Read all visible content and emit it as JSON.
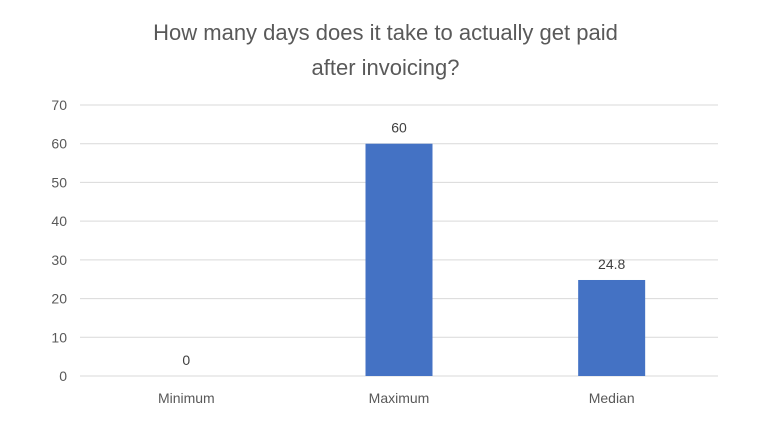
{
  "chart_data": {
    "type": "bar",
    "title": "How many days does it take to actually get paid after invoicing?",
    "title_lines": [
      "How many days does it take to actually get paid",
      "after invoicing?"
    ],
    "categories": [
      "Minimum",
      "Maximum",
      "Median"
    ],
    "values": [
      0,
      60,
      24.8
    ],
    "data_labels": [
      "0",
      "60",
      "24.8"
    ],
    "xlabel": "",
    "ylabel": "",
    "ylim": [
      0,
      70
    ],
    "yticks": [
      0,
      10,
      20,
      30,
      40,
      50,
      60,
      70
    ],
    "ytick_labels": [
      "0",
      "10",
      "20",
      "30",
      "40",
      "50",
      "60",
      "70"
    ],
    "grid": true,
    "legend": "none",
    "bar_color": "#4472c4"
  }
}
